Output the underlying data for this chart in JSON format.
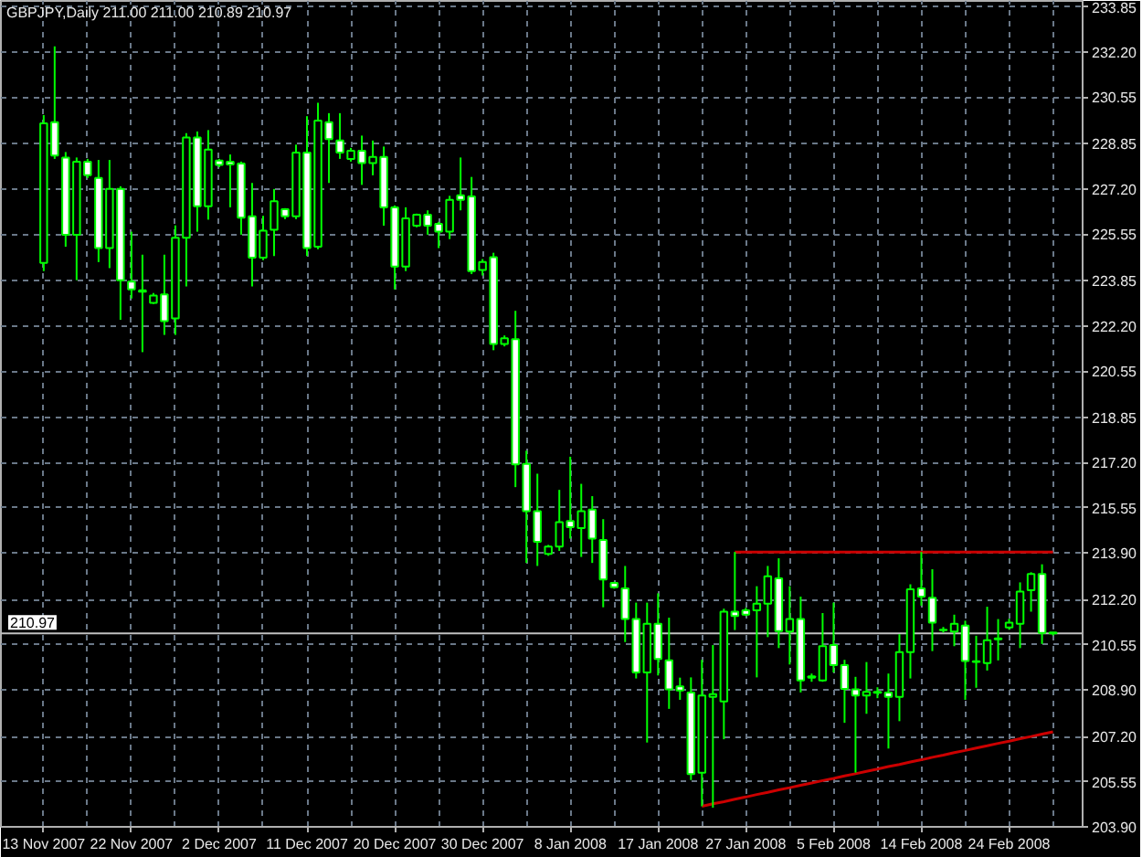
{
  "chart_data": {
    "type": "candlestick",
    "title": "GBPJPY,Daily 211.00 211.00 210.89 210.97",
    "categories": [
      "13 Nov 2007",
      null,
      null,
      null,
      null,
      null,
      null,
      null,
      "22 Nov 2007",
      null,
      null,
      null,
      null,
      null,
      null,
      null,
      "2 Dec 2007",
      null,
      null,
      null,
      null,
      null,
      null,
      null,
      "11 Dec 2007",
      null,
      null,
      null,
      null,
      null,
      null,
      null,
      "20 Dec 2007",
      null,
      null,
      null,
      null,
      null,
      null,
      null,
      "30 Dec 2007",
      null,
      null,
      null,
      null,
      null,
      null,
      null,
      "8 Jan 2008",
      null,
      null,
      null,
      null,
      null,
      null,
      null,
      "17 Jan 2008",
      null,
      null,
      null,
      null,
      null,
      null,
      null,
      "27 Jan 2008",
      null,
      null,
      null,
      null,
      null,
      null,
      null,
      "5 Feb 2008",
      null,
      null,
      null,
      null,
      null,
      null,
      null,
      "14 Feb 2008",
      null,
      null,
      null,
      null,
      null,
      null,
      null,
      "24 Feb 2008",
      null,
      null,
      null,
      null
    ],
    "ohlc": [
      [
        224.5,
        229.9,
        224.2,
        229.6
      ],
      [
        229.64,
        232.41,
        228.3,
        228.42
      ],
      [
        228.35,
        228.55,
        225.09,
        225.53
      ],
      [
        225.53,
        228.35,
        223.87,
        228.2
      ],
      [
        228.2,
        228.3,
        227.6,
        227.7
      ],
      [
        227.6,
        228.26,
        224.53,
        225.04
      ],
      [
        225.04,
        228.26,
        224.31,
        227.2
      ],
      [
        227.2,
        227.3,
        222.42,
        223.87
      ],
      [
        223.82,
        225.64,
        223.2,
        223.53
      ],
      [
        223.5,
        224.8,
        221.24,
        223.45
      ],
      [
        223.04,
        223.4,
        223.0,
        223.31
      ],
      [
        223.35,
        224.8,
        221.87,
        222.37
      ],
      [
        222.47,
        225.87,
        221.87,
        225.42
      ],
      [
        225.42,
        229.24,
        223.64,
        229.08
      ],
      [
        229.08,
        229.3,
        225.64,
        226.57
      ],
      [
        226.57,
        229.35,
        226.08,
        228.64
      ],
      [
        228.24,
        228.3,
        228.0,
        228.08
      ],
      [
        228.2,
        228.46,
        226.53,
        228.1
      ],
      [
        228.13,
        228.2,
        225.53,
        226.15
      ],
      [
        226.2,
        227.42,
        223.64,
        224.69
      ],
      [
        224.69,
        226.22,
        224.6,
        225.68
      ],
      [
        225.71,
        227.2,
        224.75,
        226.75
      ],
      [
        226.46,
        226.5,
        226.1,
        226.2
      ],
      [
        226.2,
        228.82,
        226.1,
        228.53
      ],
      [
        228.53,
        229.86,
        224.75,
        225.04
      ],
      [
        225.09,
        230.35,
        225.0,
        229.7
      ],
      [
        229.64,
        229.97,
        227.42,
        229.02
      ],
      [
        228.97,
        229.97,
        228.3,
        228.53
      ],
      [
        228.3,
        228.7,
        228.2,
        228.6
      ],
      [
        228.6,
        229.15,
        227.35,
        228.15
      ],
      [
        228.15,
        228.97,
        227.7,
        228.37
      ],
      [
        228.37,
        228.75,
        225.86,
        226.53
      ],
      [
        226.53,
        226.6,
        223.53,
        224.37
      ],
      [
        224.37,
        226.53,
        224.2,
        226.13
      ],
      [
        225.86,
        226.3,
        225.8,
        226.26
      ],
      [
        226.26,
        226.42,
        225.53,
        225.86
      ],
      [
        225.93,
        226.0,
        225.04,
        225.64
      ],
      [
        225.64,
        226.95,
        225.37,
        226.8
      ],
      [
        226.97,
        228.35,
        226.42,
        226.8
      ],
      [
        226.93,
        227.64,
        224.09,
        224.2
      ],
      [
        224.24,
        224.64,
        224.04,
        224.53
      ],
      [
        224.71,
        224.87,
        221.31,
        221.54
      ],
      [
        221.54,
        221.85,
        221.45,
        221.75
      ],
      [
        221.71,
        222.75,
        216.31,
        217.14
      ],
      [
        217.16,
        217.64,
        213.54,
        215.43
      ],
      [
        215.43,
        216.8,
        213.43,
        214.31
      ],
      [
        213.87,
        214.2,
        213.8,
        214.14
      ],
      [
        214.14,
        216.21,
        213.98,
        215.03
      ],
      [
        215.07,
        217.42,
        214.43,
        214.85
      ],
      [
        214.81,
        216.43,
        213.76,
        215.43
      ],
      [
        215.49,
        215.98,
        213.54,
        214.43
      ],
      [
        214.38,
        215.14,
        211.92,
        212.94
      ],
      [
        212.81,
        212.85,
        212.6,
        212.65
      ],
      [
        212.61,
        213.43,
        210.65,
        211.49
      ],
      [
        211.49,
        212.09,
        209.32,
        209.54
      ],
      [
        209.54,
        212.09,
        206.98,
        211.32
      ],
      [
        211.32,
        212.43,
        209.43,
        210.03
      ],
      [
        209.98,
        211.54,
        208.21,
        208.92
      ],
      [
        209.03,
        209.35,
        208.54,
        208.88
      ],
      [
        208.81,
        209.36,
        205.61,
        205.83
      ],
      [
        205.88,
        210.0,
        204.65,
        208.7
      ],
      [
        208.65,
        210.54,
        204.6,
        208.75
      ],
      [
        208.48,
        211.87,
        207.1,
        211.76
      ],
      [
        211.76,
        213.94,
        211.09,
        211.6
      ],
      [
        211.81,
        211.9,
        211.6,
        211.65
      ],
      [
        211.81,
        212.69,
        209.36,
        212.05
      ],
      [
        212.05,
        213.43,
        210.83,
        213.05
      ],
      [
        212.98,
        213.71,
        210.43,
        211.05
      ],
      [
        211.03,
        212.69,
        209.83,
        211.49
      ],
      [
        211.49,
        212.31,
        208.81,
        209.25
      ],
      [
        209.4,
        209.5,
        209.2,
        209.35
      ],
      [
        209.25,
        211.71,
        209.2,
        210.5
      ],
      [
        210.54,
        212.09,
        209.54,
        209.81
      ],
      [
        209.81,
        210.0,
        207.7,
        208.94
      ],
      [
        208.92,
        209.38,
        205.88,
        208.7
      ],
      [
        208.7,
        209.92,
        208.03,
        208.83
      ],
      [
        208.8,
        209.0,
        208.6,
        208.83
      ],
      [
        208.81,
        209.5,
        206.76,
        208.65
      ],
      [
        208.65,
        210.94,
        207.76,
        210.28
      ],
      [
        210.28,
        212.76,
        209.32,
        212.58
      ],
      [
        212.61,
        213.94,
        211.98,
        212.31
      ],
      [
        212.27,
        213.31,
        210.32,
        211.36
      ],
      [
        211.08,
        211.2,
        211.0,
        211.1
      ],
      [
        211.03,
        211.65,
        210.5,
        211.32
      ],
      [
        211.25,
        211.43,
        208.54,
        209.96
      ],
      [
        209.95,
        210.88,
        208.98,
        209.92
      ],
      [
        209.88,
        211.94,
        209.61,
        210.72
      ],
      [
        210.75,
        211.49,
        209.98,
        210.78
      ],
      [
        211.18,
        211.5,
        211.1,
        211.36
      ],
      [
        211.32,
        212.83,
        210.43,
        212.49
      ],
      [
        212.54,
        213.2,
        211.76,
        213.14
      ],
      [
        213.14,
        213.49,
        210.58,
        210.98
      ],
      [
        211.0,
        211.0,
        210.89,
        210.97
      ]
    ],
    "color": "#00ff00",
    "colors": [
      "#000000",
      "#ffffff",
      "#ffffff",
      "#000000",
      "#ffffff",
      "#ffffff",
      "#000000",
      "#ffffff",
      "#ffffff",
      "#ffffff",
      "#000000",
      "#ffffff",
      "#000000",
      "#000000",
      "#ffffff",
      "#000000",
      "#ffffff",
      "#ffffff",
      "#ffffff",
      "#ffffff",
      "#000000",
      "#000000",
      "#ffffff",
      "#000000",
      "#ffffff",
      "#000000",
      "#ffffff",
      "#ffffff",
      "#000000",
      "#ffffff",
      "#000000",
      "#ffffff",
      "#ffffff",
      "#000000",
      "#000000",
      "#ffffff",
      "#ffffff",
      "#000000",
      "#ffffff",
      "#ffffff",
      "#000000",
      "#ffffff",
      "#000000",
      "#ffffff",
      "#ffffff",
      "#ffffff",
      "#000000",
      "#000000",
      "#ffffff",
      "#000000",
      "#ffffff",
      "#ffffff",
      "#ffffff",
      "#ffffff",
      "#ffffff",
      "#000000",
      "#ffffff",
      "#ffffff",
      "#ffffff",
      "#ffffff",
      "#000000",
      "#000000",
      "#000000",
      "#ffffff",
      "#ffffff",
      "#000000",
      "#000000",
      "#ffffff",
      "#000000",
      "#ffffff",
      "#ffffff",
      "#000000",
      "#ffffff",
      "#ffffff",
      "#ffffff",
      "#000000",
      "#000000",
      "#ffffff",
      "#000000",
      "#000000",
      "#ffffff",
      "#ffffff",
      "#000000",
      "#000000",
      "#ffffff",
      "#ffffff",
      "#000000",
      "#000000",
      "#000000",
      "#000000",
      "#000000",
      "#ffffff",
      "#ffffff"
    ],
    "series": [
      {
        "type": "line",
        "color": "#cc0000",
        "values": [
          null,
          null,
          null,
          null,
          null,
          null,
          null,
          null,
          null,
          null,
          null,
          null,
          null,
          null,
          null,
          null,
          null,
          null,
          null,
          null,
          null,
          null,
          null,
          null,
          null,
          null,
          null,
          null,
          null,
          null,
          null,
          null,
          null,
          null,
          null,
          null,
          null,
          null,
          null,
          null,
          null,
          null,
          null,
          null,
          null,
          null,
          null,
          null,
          null,
          null,
          null,
          null,
          null,
          null,
          null,
          null,
          null,
          null,
          null,
          null,
          204.65,
          204.74,
          204.82,
          204.91,
          204.99,
          205.08,
          205.16,
          205.25,
          205.33,
          205.42,
          205.5,
          205.59,
          205.67,
          205.76,
          205.84,
          205.93,
          206.01,
          206.1,
          206.18,
          206.27,
          206.35,
          206.44,
          206.52,
          206.61,
          206.69,
          206.78,
          206.86,
          206.95,
          207.03,
          207.12,
          207.2,
          207.29,
          207.37
        ]
      },
      {
        "type": "line",
        "color": "#cc0000",
        "values": [
          null,
          null,
          null,
          null,
          null,
          null,
          null,
          null,
          null,
          null,
          null,
          null,
          null,
          null,
          null,
          null,
          null,
          null,
          null,
          null,
          null,
          null,
          null,
          null,
          null,
          null,
          null,
          null,
          null,
          null,
          null,
          null,
          null,
          null,
          null,
          null,
          null,
          null,
          null,
          null,
          null,
          null,
          null,
          null,
          null,
          null,
          null,
          null,
          null,
          null,
          null,
          null,
          null,
          null,
          null,
          null,
          null,
          null,
          null,
          null,
          null,
          null,
          null,
          213.94,
          213.94,
          213.94,
          213.94,
          213.94,
          213.94,
          213.94,
          213.94,
          213.94,
          213.94,
          213.94,
          213.94,
          213.94,
          213.94,
          213.94,
          213.94,
          213.94,
          213.94,
          213.94,
          213.94,
          213.94,
          213.94,
          213.94,
          213.94,
          213.94,
          213.94,
          213.94,
          213.94,
          213.94,
          213.94
        ]
      }
    ],
    "ref_lines": [
      {
        "axis": "y",
        "value": 210.97,
        "label": "210.97",
        "color": "#c0c0c0"
      }
    ],
    "ylim": [
      203.9,
      234.07
    ],
    "yticks": [
      {
        "value": 203.9,
        "label": "203.90"
      },
      205.55,
      {
        "value": 207.2,
        "label": "207.20"
      },
      {
        "value": 208.9,
        "label": "208.90"
      },
      210.55,
      {
        "value": 212.2,
        "label": "212.20"
      },
      {
        "value": 213.9,
        "label": "213.90"
      },
      215.55,
      {
        "value": 217.2,
        "label": "217.20"
      },
      218.85,
      220.55,
      {
        "value": 222.2,
        "label": "222.20"
      },
      223.85,
      225.55,
      {
        "value": 227.2,
        "label": "227.20"
      },
      228.85,
      230.55,
      {
        "value": 232.2,
        "label": "232.20"
      },
      233.85
    ],
    "grid": true
  }
}
